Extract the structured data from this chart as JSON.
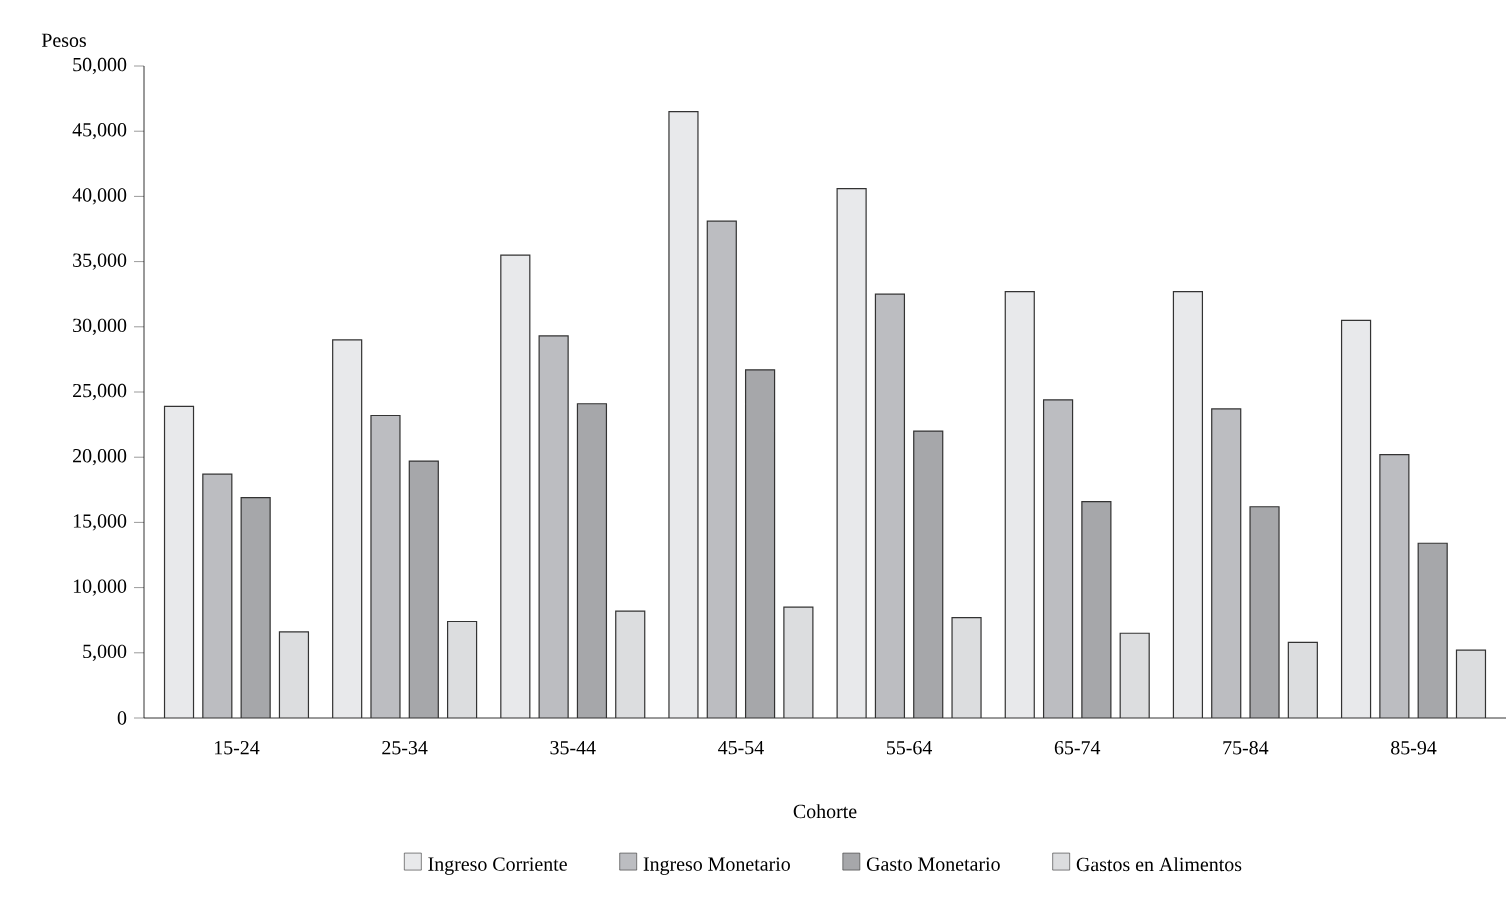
{
  "chart_data": {
    "type": "bar",
    "xlabel": "Cohorte",
    "ylabel": "Pesos",
    "categories": [
      "15-24",
      "25-34",
      "35-44",
      "45-54",
      "55-64",
      "65-74",
      "75-84",
      "85-94"
    ],
    "series": [
      {
        "name": "Ingreso Corriente",
        "color": "#e8e9eb",
        "values": [
          23900,
          29000,
          35500,
          46500,
          40600,
          32700,
          32700,
          30500
        ]
      },
      {
        "name": "Ingreso Monetario",
        "color": "#bcbdc1",
        "values": [
          18700,
          23200,
          29300,
          38100,
          32500,
          24400,
          23700,
          20200
        ]
      },
      {
        "name": "Gasto Monetario",
        "color": "#a6a7aa",
        "values": [
          16900,
          19700,
          24100,
          26700,
          22000,
          16600,
          16200,
          13400
        ]
      },
      {
        "name": "Gastos en Alimentos",
        "color": "#dcdddf",
        "values": [
          6600,
          7400,
          8200,
          8500,
          7700,
          6500,
          5800,
          5200
        ]
      }
    ],
    "ylim": [
      0,
      50000
    ],
    "yticks": [
      {
        "value": 0,
        "label": "0"
      },
      {
        "value": 5000,
        "label": "5,000"
      },
      {
        "value": 10000,
        "label": "10,000"
      },
      {
        "value": 15000,
        "label": "15,000"
      },
      {
        "value": 20000,
        "label": "20,000"
      },
      {
        "value": 25000,
        "label": "25,000"
      },
      {
        "value": 30000,
        "label": "30,000"
      },
      {
        "value": 35000,
        "label": "35,000"
      },
      {
        "value": 40000,
        "label": "40,000"
      },
      {
        "value": 45000,
        "label": "45,000"
      },
      {
        "value": 50000,
        "label": "50,000"
      }
    ],
    "legend": "bottom",
    "grid": false
  }
}
